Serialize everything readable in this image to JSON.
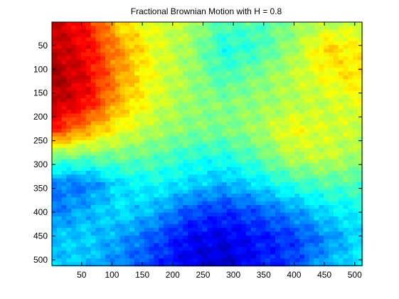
{
  "chart_data": {
    "type": "heatmap",
    "title": "Fractional Brownian Motion with H = 0.8",
    "xlabel": "",
    "ylabel": "",
    "xlim": [
      1,
      512
    ],
    "ylim": [
      1,
      512
    ],
    "y_reversed": true,
    "x_ticks": [
      50,
      100,
      150,
      200,
      250,
      300,
      350,
      400,
      450,
      500
    ],
    "y_ticks": [
      50,
      100,
      150,
      200,
      250,
      300,
      350,
      400,
      450,
      500
    ],
    "colormap": "jet",
    "grid": false,
    "legend": "none",
    "zlim": [
      0,
      1
    ],
    "z_samples": {
      "x": [
        1,
        57,
        114,
        171,
        228,
        285,
        341,
        398,
        455,
        512
      ],
      "y": [
        1,
        57,
        114,
        171,
        228,
        285,
        341,
        398,
        455,
        512
      ],
      "values": [
        [
          0.93,
          0.87,
          0.65,
          0.59,
          0.55,
          0.45,
          0.45,
          0.51,
          0.55,
          0.57
        ],
        [
          0.95,
          0.88,
          0.73,
          0.6,
          0.53,
          0.4,
          0.43,
          0.53,
          0.67,
          0.62
        ],
        [
          0.97,
          0.9,
          0.72,
          0.6,
          0.53,
          0.44,
          0.5,
          0.56,
          0.62,
          0.66
        ],
        [
          0.95,
          0.88,
          0.69,
          0.59,
          0.52,
          0.5,
          0.52,
          0.55,
          0.57,
          0.6
        ],
        [
          0.85,
          0.72,
          0.61,
          0.54,
          0.5,
          0.49,
          0.53,
          0.62,
          0.58,
          0.57
        ],
        [
          0.48,
          0.47,
          0.48,
          0.46,
          0.41,
          0.4,
          0.46,
          0.55,
          0.57,
          0.52
        ],
        [
          0.25,
          0.24,
          0.35,
          0.38,
          0.34,
          0.3,
          0.35,
          0.42,
          0.45,
          0.45
        ],
        [
          0.24,
          0.3,
          0.35,
          0.3,
          0.2,
          0.17,
          0.21,
          0.27,
          0.35,
          0.38
        ],
        [
          0.32,
          0.33,
          0.28,
          0.2,
          0.12,
          0.1,
          0.14,
          0.18,
          0.26,
          0.35
        ],
        [
          0.32,
          0.32,
          0.25,
          0.18,
          0.1,
          0.07,
          0.14,
          0.19,
          0.3,
          0.37
        ]
      ]
    }
  },
  "colors": {
    "axis": "#000000",
    "background": "#ffffff"
  }
}
